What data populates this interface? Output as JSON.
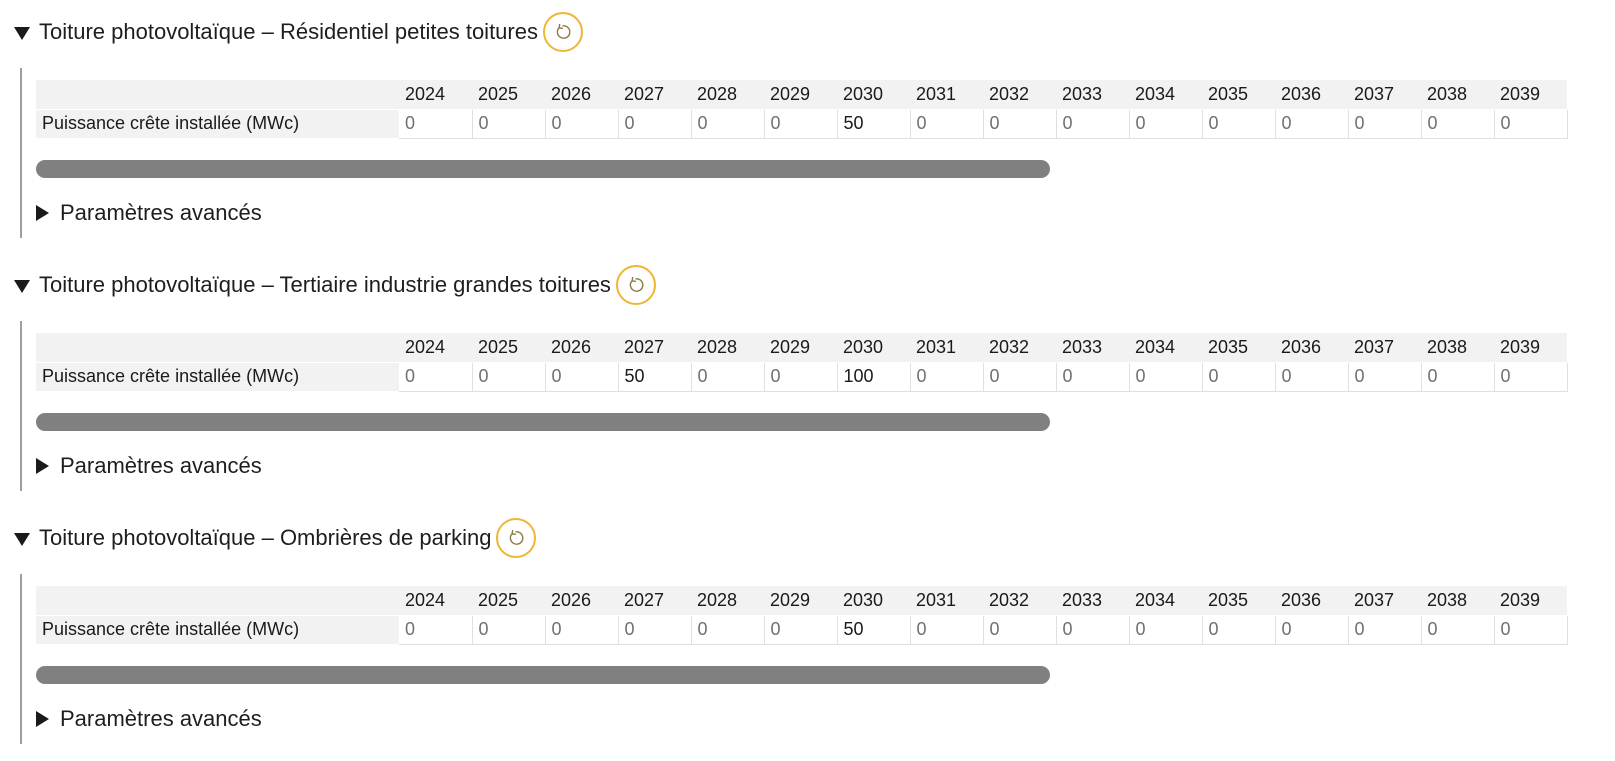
{
  "years": [
    "2024",
    "2025",
    "2026",
    "2027",
    "2028",
    "2029",
    "2030",
    "2031",
    "2032",
    "2033",
    "2034",
    "2035",
    "2036",
    "2037",
    "2038",
    "2039"
  ],
  "sections": [
    {
      "title": "Toiture photovoltaïque – Résidentiel petites toitures",
      "row_label": "Puissance crête installée (MWc)",
      "values": [
        "0",
        "0",
        "0",
        "0",
        "0",
        "0",
        "50",
        "0",
        "0",
        "0",
        "0",
        "0",
        "0",
        "0",
        "0",
        "0"
      ],
      "advanced_label": "Paramètres avancés"
    },
    {
      "title": "Toiture photovoltaïque – Tertiaire industrie grandes toitures",
      "row_label": "Puissance crête installée (MWc)",
      "values": [
        "0",
        "0",
        "0",
        "50",
        "0",
        "0",
        "100",
        "0",
        "0",
        "0",
        "0",
        "0",
        "0",
        "0",
        "0",
        "0"
      ],
      "advanced_label": "Paramètres avancés"
    },
    {
      "title": "Toiture photovoltaïque – Ombrières de parking",
      "row_label": "Puissance crête installée (MWc)",
      "values": [
        "0",
        "0",
        "0",
        "0",
        "0",
        "0",
        "50",
        "0",
        "0",
        "0",
        "0",
        "0",
        "0",
        "0",
        "0",
        "0"
      ],
      "advanced_label": "Paramètres avancés"
    }
  ],
  "icons": {
    "collapse": "triangle-down-icon",
    "expand": "triangle-right-icon",
    "reset": "reset-icon"
  },
  "colors": {
    "reset_accent": "#efb634",
    "header_bg": "#f2f2f2",
    "scrollbar": "#808080"
  }
}
